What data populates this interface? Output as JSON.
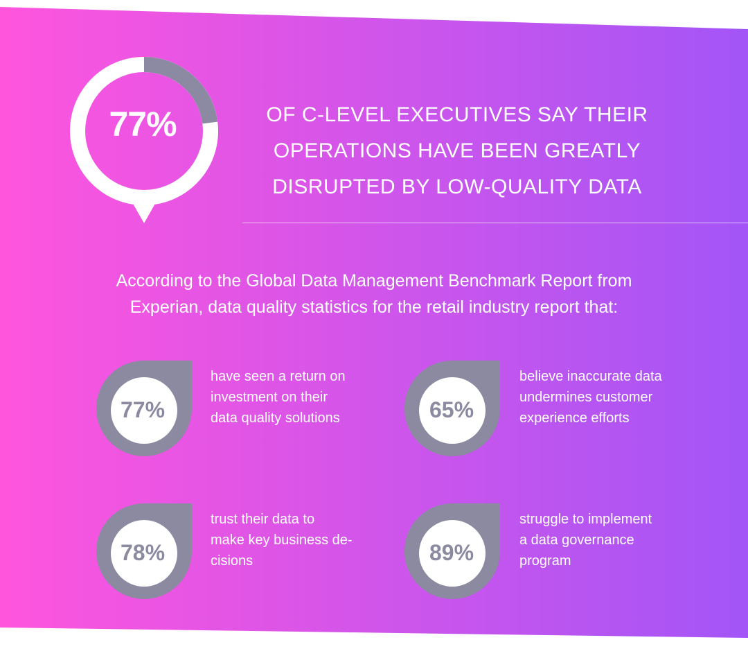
{
  "hero": {
    "percent": "77%",
    "percent_value": 77,
    "headline_lines": [
      "OF C-LEVEL EXECUTIVES SAY THEIR",
      "OPERATIONS HAVE BEEN GREATLY",
      "DISRUPTED BY LOW-QUALITY DATA"
    ]
  },
  "intro_lines": [
    "According to the Global Data Management Benchmark Report from",
    "Experian, data quality statistics for the retail industry report that:"
  ],
  "stats": [
    {
      "percent": "77%",
      "lines": [
        "have seen a return on",
        "investment on their",
        "data quality solutions"
      ]
    },
    {
      "percent": "65%",
      "lines": [
        "believe inaccurate data",
        "undermines customer",
        "experience efforts"
      ]
    },
    {
      "percent": "78%",
      "lines": [
        "trust their data to",
        "make key business de-",
        "cisions"
      ]
    },
    {
      "percent": "89%",
      "lines": [
        "struggle to implement",
        "a data governance",
        "program"
      ]
    }
  ],
  "colors": {
    "gradient_left": "#ff55dd",
    "gradient_right": "#a355f7",
    "badge_gray": "#8b8aa0",
    "ring_gray": "#8c8aa2",
    "text_white": "#ffffff"
  },
  "icons": [
    "donut-ring-icon",
    "teardrop-badge-icon"
  ]
}
